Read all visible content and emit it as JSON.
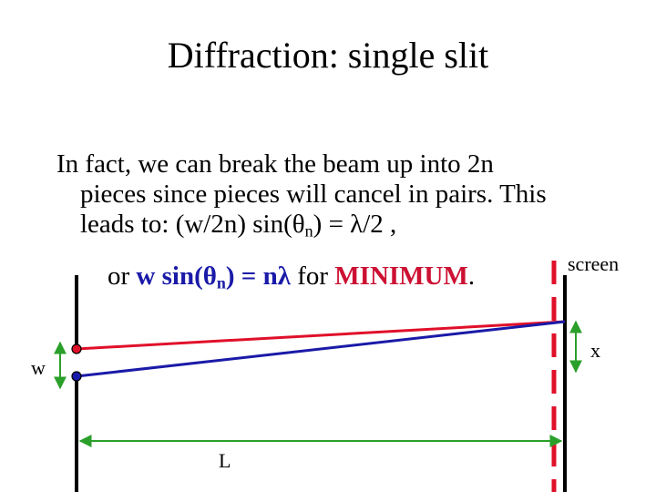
{
  "title": "Diffraction:  single slit",
  "body": {
    "line1": "In fact, we can break the beam up into 2n",
    "line2": "pieces since pieces will cancel in pairs.  This",
    "line3_pre": "leads to: (w/2n) sin(",
    "theta": "θ",
    "sub_n": "n",
    "line3_post": ") = λ/2 ,"
  },
  "formula": {
    "prefix": "or ",
    "eq_pre": "w sin(",
    "theta": "θ",
    "sub_n": "n",
    "eq_post": ") = nλ",
    "mid": " for ",
    "minimum": "MINIMUM",
    "period": "."
  },
  "labels": {
    "screen": "screen",
    "x": "x",
    "w": "w",
    "L": "L"
  },
  "colors": {
    "red_ray": "#e0102a",
    "blue_ray": "#1a1aa8",
    "arrow": "#2aa02a",
    "wall": "#000000"
  }
}
